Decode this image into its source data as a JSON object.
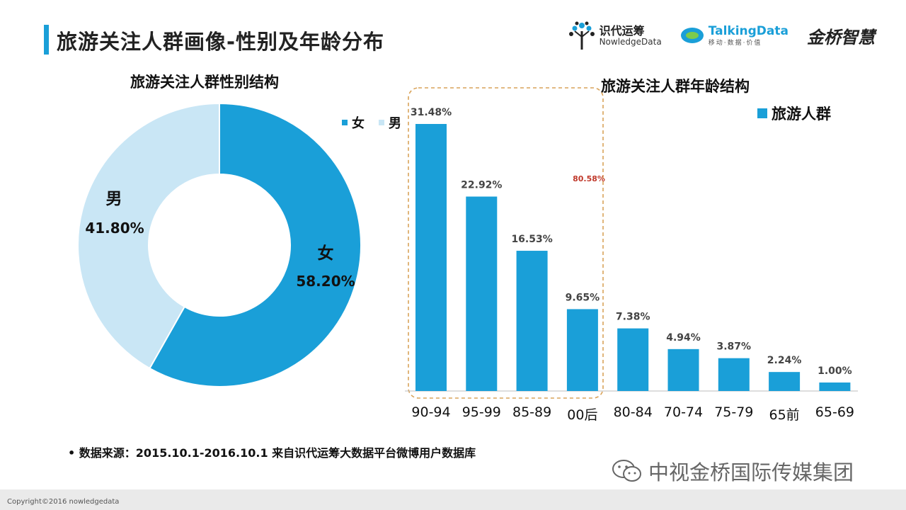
{
  "header": {
    "title": "旅游关注人群画像-性别及年龄分布"
  },
  "logos": [
    {
      "name": "识代运筹",
      "sub": "NowledgeData"
    },
    {
      "name": "TalkingData",
      "sub": "移动·数据·价值"
    },
    {
      "name": "金桥智慧"
    }
  ],
  "colors": {
    "accent": "#1a9fd8",
    "light": "#c9e6f5",
    "highlight_red": "#c0392b",
    "highlight_border": "#d9a35a"
  },
  "chart_data": [
    {
      "type": "pie",
      "title": "旅游关注人群性别结构",
      "legend": [
        "女",
        "男"
      ],
      "slices": [
        {
          "label": "女",
          "value": 58.2,
          "display": "58.20%"
        },
        {
          "label": "男",
          "value": 41.8,
          "display": "41.80%"
        }
      ]
    },
    {
      "type": "bar",
      "title": "旅游关注人群年龄结构",
      "legend": [
        "旅游人群"
      ],
      "categories": [
        "90-94",
        "95-99",
        "85-89",
        "00后",
        "80-84",
        "70-74",
        "75-79",
        "65前",
        "65-69"
      ],
      "values": [
        31.48,
        22.92,
        16.53,
        9.65,
        7.38,
        4.94,
        3.87,
        2.24,
        1.0
      ],
      "labels": [
        "31.48%",
        "22.92%",
        "16.53%",
        "9.65%",
        "7.38%",
        "4.94%",
        "3.87%",
        "2.24%",
        "1.00%"
      ],
      "ylim": [
        0,
        31.48
      ],
      "highlight": {
        "group": [
          "90-94",
          "95-99",
          "85-89",
          "00后"
        ],
        "total_label": "80.58%"
      }
    }
  ],
  "footer": {
    "source": "• 数据来源：2015.10.1-2016.10.1  来自识代运筹大数据平台微博用户数据库",
    "watermark": "中视金桥国际传媒集团",
    "copyright": "Copyright©2016 nowledgedata"
  }
}
